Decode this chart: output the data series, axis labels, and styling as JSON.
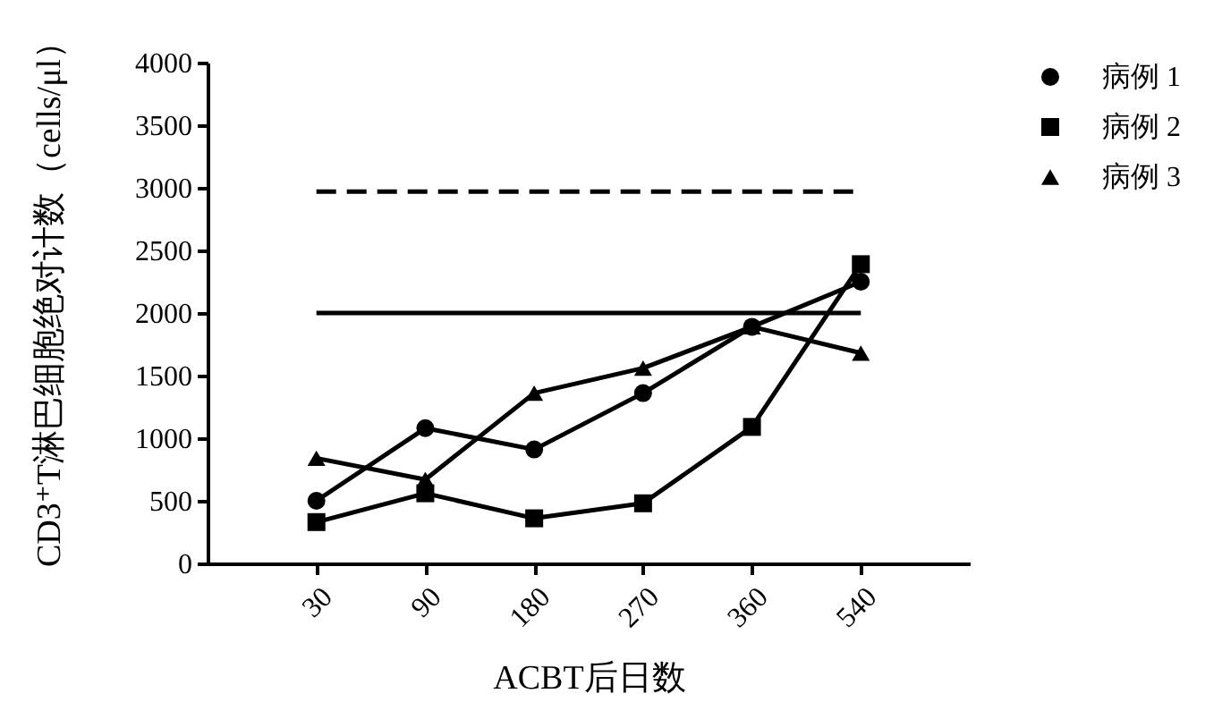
{
  "chart_data": {
    "type": "line",
    "categories": [
      "30",
      "90",
      "180",
      "270",
      "360",
      "540"
    ],
    "series": [
      {
        "name": "病例 1",
        "color": "#000000",
        "marker": "circle",
        "values": [
          500,
          1080,
          910,
          1360,
          1890,
          2250
        ]
      },
      {
        "name": "病例 2",
        "color": "#000000",
        "marker": "square",
        "values": [
          330,
          560,
          360,
          480,
          1090,
          2390
        ]
      },
      {
        "name": "病例 3",
        "color": "#000000",
        "marker": "triangle",
        "values": [
          840,
          670,
          1360,
          1560,
          1890,
          1680
        ]
      }
    ],
    "ylim": [
      0,
      4000
    ],
    "yticks": [
      0,
      500,
      1000,
      1500,
      2000,
      2500,
      3000,
      3500,
      4000
    ],
    "xlabel": "ACBT后日数",
    "ylabel": "CD3⁺T淋巴细胞绝对计数（cells/μl）",
    "ref_lines": [
      {
        "axis": "y",
        "value": 2000,
        "line_style": "solid"
      },
      {
        "axis": "y",
        "value": 2970,
        "line_style": "dashed"
      }
    ],
    "line_style": "solid",
    "grid": false,
    "legend": "top right"
  }
}
